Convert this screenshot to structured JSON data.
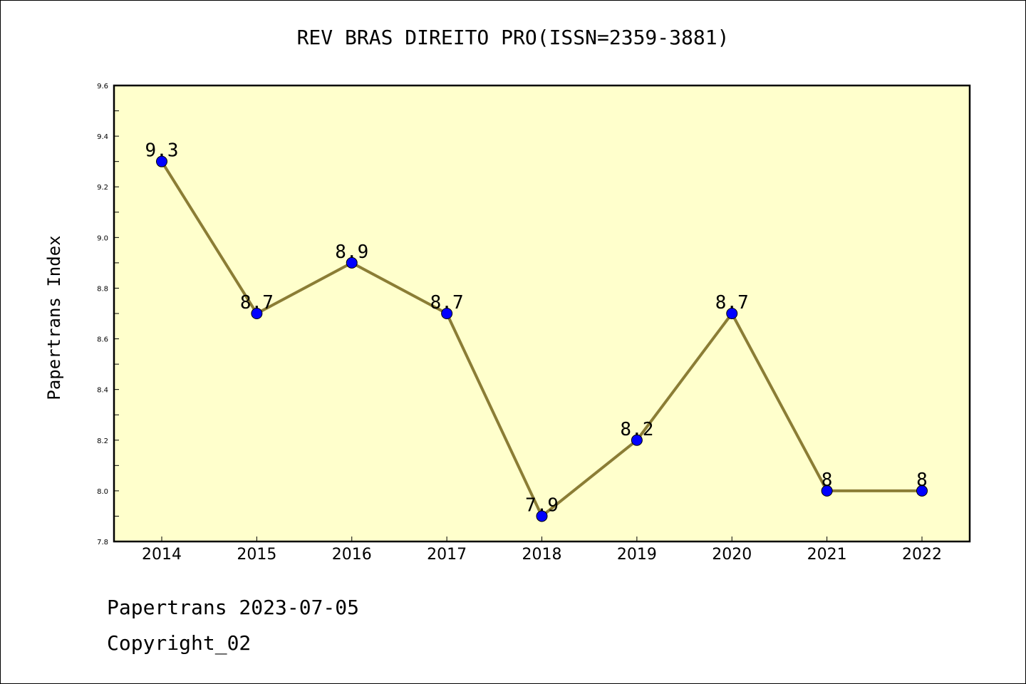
{
  "title": "REV BRAS DIREITO PRO(ISSN=2359-3881)",
  "footer": {
    "line1": "Papertrans 2023-07-05",
    "line2": "Copyright_02"
  },
  "chart_data": {
    "type": "line",
    "title": "REV BRAS DIREITO PRO(ISSN=2359-3881)",
    "xlabel": "",
    "ylabel": "Papertrans Index",
    "x": [
      "2014",
      "2015",
      "2016",
      "2017",
      "2018",
      "2019",
      "2020",
      "2021",
      "2022"
    ],
    "series": [
      {
        "values": [
          9.3,
          8.7,
          8.9,
          8.7,
          7.9,
          8.2,
          8.7,
          8.0,
          8.0
        ],
        "labels": [
          "9.3",
          "8.7",
          "8.9",
          "8.7",
          "7.9",
          "8.2",
          "8.7",
          "8",
          "8"
        ]
      }
    ],
    "ylim": [
      7.8,
      9.6
    ],
    "yticks": [
      "7.8",
      "8.0",
      "8.2",
      "8.4",
      "8.6",
      "8.8",
      "9.0",
      "9.2",
      "9.4",
      "9.6"
    ],
    "grid": false,
    "colors": {
      "plot_background": "#ffffcc",
      "line": "#8b7d35",
      "marker": "#0000ff"
    }
  }
}
